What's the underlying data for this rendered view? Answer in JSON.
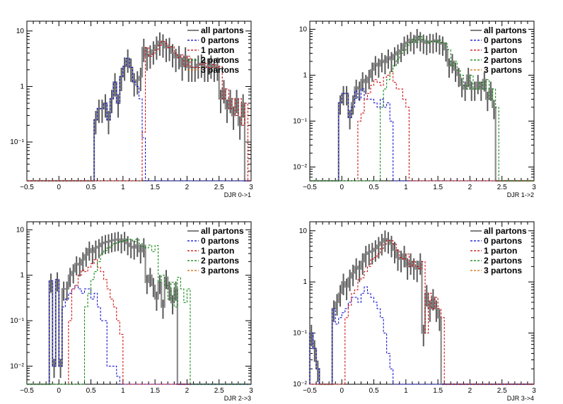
{
  "colors": {
    "all": "#7f7f7f",
    "p0": "#0000cc",
    "p1": "#cc0000",
    "p2": "#008000",
    "p3": "#cc6600",
    "frame": "#000000",
    "error": "#5a5a5a"
  },
  "chart_data": [
    {
      "type": "histogram",
      "xlabel": "DJR 0->1",
      "ylabel": "",
      "xlim": [
        -0.5,
        3
      ],
      "ylim": [
        0.02,
        15
      ],
      "log_y": true,
      "xticks": [
        -0.5,
        0,
        0.5,
        1,
        1.5,
        2,
        2.5,
        3
      ],
      "xtick_labels": [
        "−0.5",
        "0",
        "0.5",
        "1",
        "1.5",
        "2",
        "2.5",
        "3"
      ],
      "yticks": [
        0.1,
        1,
        10
      ],
      "ytick_labels": [
        "10⁻¹",
        "1",
        "10"
      ],
      "bin_width": 0.05,
      "legend": [
        "all partons",
        "0 partons",
        "1 parton",
        "2 partons",
        "3 partons"
      ],
      "legend_position": "top-right",
      "series": [
        {
          "key": "all",
          "name": "all partons",
          "start": 0.55,
          "values": [
            0.25,
            0.4,
            0.4,
            0.5,
            0.25,
            0.6,
            1.2,
            0.5,
            1.5,
            2.3,
            3.2,
            2.2,
            1.2,
            1.3,
            1.5,
            5.0,
            3.5,
            3.8,
            4.5,
            5.5,
            6.5,
            6.0,
            5.0,
            5.2,
            4.0,
            3.3,
            3.7,
            2.3,
            3.5,
            2.2,
            2.2,
            2.2,
            2.5,
            2.6,
            2.2,
            2.2,
            2.5,
            2.2,
            2.3,
            0.6,
            0.9,
            0.4,
            0.6,
            0.3,
            0.6,
            0.2,
            0.5
          ]
        },
        {
          "key": "p0",
          "name": "0 partons",
          "start": 0.55,
          "values": [
            0.25,
            0.4,
            0.4,
            0.5,
            0.25,
            0.6,
            1.2,
            0.5,
            1.5,
            2.3,
            3.2,
            2.2,
            1.2,
            1.0,
            0.6,
            0.12
          ]
        },
        {
          "key": "p1",
          "name": "1 parton",
          "start": 1.3,
          "values": [
            0.15,
            5.0,
            3.5,
            3.8,
            4.5,
            5.5,
            6.5,
            6.0,
            5.0,
            5.2,
            4.0,
            3.3,
            3.7,
            2.3,
            3.5,
            2.2,
            2.2,
            2.2,
            2.5,
            2.6,
            2.2,
            2.2,
            2.5,
            2.2,
            2.3,
            0.6,
            0.9,
            0.4,
            0.6,
            0.3,
            0.6,
            0.2,
            0.5
          ]
        }
      ]
    },
    {
      "type": "histogram",
      "xlabel": "DJR 1->2",
      "ylabel": "",
      "xlim": [
        -0.5,
        3
      ],
      "ylim": [
        0.005,
        15
      ],
      "log_y": true,
      "xticks": [
        -0.5,
        0,
        0.5,
        1,
        1.5,
        2,
        2.5,
        3
      ],
      "xtick_labels": [
        "−0.5",
        "0",
        "0.5",
        "1",
        "1.5",
        "2",
        "2.5",
        "3"
      ],
      "yticks": [
        0.01,
        0.1,
        1,
        10
      ],
      "ytick_labels": [
        "10⁻²",
        "10⁻¹",
        "1",
        "10"
      ],
      "bin_width": 0.05,
      "legend": [
        "all partons",
        "0 partons",
        "1 parton",
        "2 partons",
        "3 partons"
      ],
      "legend_position": "top-right",
      "series": [
        {
          "key": "all",
          "name": "all partons",
          "start": -0.05,
          "values": [
            0.25,
            0.4,
            0.4,
            0.12,
            0.25,
            0.55,
            0.5,
            0.8,
            0.7,
            0.9,
            1.3,
            1.8,
            1.6,
            2.1,
            1.9,
            2.5,
            2.2,
            2.8,
            3.2,
            3.5,
            4.8,
            5.2,
            6.0,
            5.2,
            7.0,
            6.0,
            5.3,
            5.0,
            5.5,
            5.4,
            5.8,
            5.1,
            4.8,
            3.6,
            1.6,
            2.0,
            1.3,
            1.0,
            0.6,
            0.5,
            1.0,
            0.5,
            0.5,
            0.7,
            0.5,
            0.8,
            0.3,
            0.5,
            0.2
          ]
        },
        {
          "key": "p0",
          "name": "0 partons",
          "start": -0.05,
          "values": [
            0.25,
            0.4,
            0.4,
            0.12,
            0.2,
            0.45,
            0.3,
            0.5,
            0.3,
            0.3,
            0.3,
            0.25,
            0.2,
            0.3,
            0.2,
            0.25,
            0.1
          ]
        },
        {
          "key": "p1",
          "name": "1 parton",
          "start": 0.25,
          "values": [
            0.1,
            0.15,
            0.3,
            0.4,
            0.6,
            0.8,
            0.7,
            0.6,
            0.9,
            1.0,
            1.2,
            0.7,
            0.5,
            0.5,
            0.3,
            0.2
          ]
        },
        {
          "key": "p2",
          "name": "2 partons",
          "start": 0.6,
          "values": [
            0.2,
            0.5,
            0.8,
            1.2,
            1.6,
            2.2,
            3.0,
            3.5,
            4.5,
            5.0,
            6.0,
            5.2,
            7.0,
            6.0,
            5.3,
            5.0,
            5.5,
            5.4,
            5.8,
            5.1,
            4.8,
            3.6,
            1.6,
            2.0,
            1.3,
            1.0,
            0.6,
            0.5,
            1.0,
            0.5,
            0.5,
            0.7,
            0.5,
            0.8,
            0.3,
            0.5,
            0.2
          ]
        }
      ]
    },
    {
      "type": "histogram",
      "xlabel": "DJR 2->3",
      "ylabel": "",
      "xlim": [
        -0.5,
        3
      ],
      "ylim": [
        0.004,
        15
      ],
      "log_y": true,
      "xticks": [
        -0.5,
        0,
        0.5,
        1,
        1.5,
        2,
        2.5,
        3
      ],
      "xtick_labels": [
        "−0.5",
        "0",
        "0.5",
        "1",
        "1.5",
        "2",
        "2.5",
        "3"
      ],
      "yticks": [
        0.01,
        0.1,
        1,
        10
      ],
      "ytick_labels": [
        "10⁻²",
        "10⁻¹",
        "1",
        "10"
      ],
      "bin_width": 0.05,
      "legend": [
        "all partons",
        "0 partons",
        "1 parton",
        "2 partons",
        "3 partons"
      ],
      "legend_position": "top-right",
      "series": [
        {
          "key": "all",
          "name": "all partons",
          "start": -0.15,
          "values": [
            0.75,
            0.01,
            0.8,
            0.01,
            0.5,
            0.5,
            1.0,
            1.2,
            1.8,
            1.7,
            2.2,
            2.8,
            3.8,
            3.2,
            4.0,
            4.3,
            5.0,
            5.3,
            5.5,
            5.8,
            6.0,
            6.2,
            5.5,
            6.2,
            5.0,
            4.3,
            4.0,
            4.6,
            3.3,
            4.5,
            0.7,
            1.0,
            0.6,
            0.3,
            0.7,
            0.2,
            0.9,
            0.5,
            0.25,
            0.5
          ]
        },
        {
          "key": "p0",
          "name": "0 partons",
          "start": -0.15,
          "values": [
            0.75,
            0.01,
            0.8,
            0.01,
            0.2,
            0.3,
            0.4,
            0.5,
            0.6,
            0.5,
            0.4,
            0.5,
            0.5,
            0.3,
            0.4,
            0.2,
            0.1,
            0.1,
            0.01,
            0.01,
            0.01,
            0.006
          ]
        },
        {
          "key": "p1",
          "name": "1 parton",
          "start": 0.15,
          "values": [
            0.1,
            0.5,
            0.6,
            1.0,
            1.3,
            1.2,
            1.5,
            1.8,
            2.2,
            1.5,
            1.2,
            0.8,
            0.5,
            0.3,
            0.2,
            0.1,
            0.05
          ]
        },
        {
          "key": "p2",
          "name": "2 partons",
          "start": 0.4,
          "values": [
            0.2,
            0.4,
            0.8,
            1.2,
            2.0,
            3.0,
            3.5,
            4.0,
            4.5,
            5.0,
            5.3,
            5.5,
            5.8,
            6.0,
            6.2,
            5.5,
            6.2,
            5.0,
            4.3,
            4.0,
            4.6,
            3.3,
            4.5,
            0.7,
            1.0,
            0.6,
            0.3,
            0.7,
            0.2,
            0.9,
            0.5,
            0.25,
            0.5
          ]
        }
      ]
    },
    {
      "type": "histogram",
      "xlabel": "DJR 3->4",
      "ylabel": "",
      "xlim": [
        -0.5,
        3
      ],
      "ylim": [
        0.01,
        15
      ],
      "log_y": true,
      "xticks": [
        -0.5,
        0,
        0.5,
        1,
        1.5,
        2,
        2.5,
        3
      ],
      "xtick_labels": [
        "−0.5",
        "0",
        "0.5",
        "1",
        "1.5",
        "2",
        "2.5",
        "3"
      ],
      "yticks": [
        0.01,
        0.1,
        1,
        10
      ],
      "ytick_labels": [
        "10⁻²",
        "10⁻¹",
        "1",
        "10"
      ],
      "bin_width": 0.05,
      "legend": [
        "all partons",
        "0 partons",
        "1 parton",
        "2 partons",
        "3 partons"
      ],
      "legend_position": "top-right",
      "series": [
        {
          "key": "all",
          "name": "all partons",
          "start": -0.5,
          "values": [
            0.1,
            0.05,
            0.02,
            0.01,
            0.01,
            0.01,
            0.01,
            0.3,
            0.4,
            0.6,
            1.0,
            0.8,
            1.2,
            1.5,
            2.0,
            1.8,
            2.5,
            3.5,
            3.8,
            4.0,
            4.5,
            5.2,
            6.0,
            7.0,
            6.5,
            5.5,
            4.2,
            3.0,
            2.8,
            3.5,
            2.0,
            2.5,
            2.0,
            1.8,
            2.5,
            0.1,
            0.6,
            0.3,
            0.5,
            0.3,
            0.2,
            0.01
          ]
        },
        {
          "key": "p0",
          "name": "0 partons",
          "start": -0.5,
          "values": [
            0.1,
            0.05,
            0.02,
            0.01,
            0.01,
            0.01,
            0.01,
            0.3,
            0.15,
            0.2,
            0.25,
            0.3,
            0.4,
            0.5,
            0.5,
            0.4,
            0.6,
            0.8,
            0.6,
            0.5,
            0.4,
            0.3,
            0.2,
            0.1,
            0.04,
            0.02
          ]
        },
        {
          "key": "p1",
          "name": "1 parton",
          "start": 0.05,
          "values": [
            0.2,
            0.35,
            0.6,
            0.7,
            1.1,
            1.2,
            1.6,
            2.0,
            2.8,
            3.0,
            3.5,
            4.5,
            5.5,
            6.5,
            6.4,
            5.5,
            4.2,
            3.0,
            2.8,
            3.5,
            2.0,
            2.5,
            2.0,
            1.8,
            2.5,
            0.1,
            0.6,
            0.3,
            0.5,
            0.3,
            0.2
          ]
        }
      ]
    }
  ]
}
